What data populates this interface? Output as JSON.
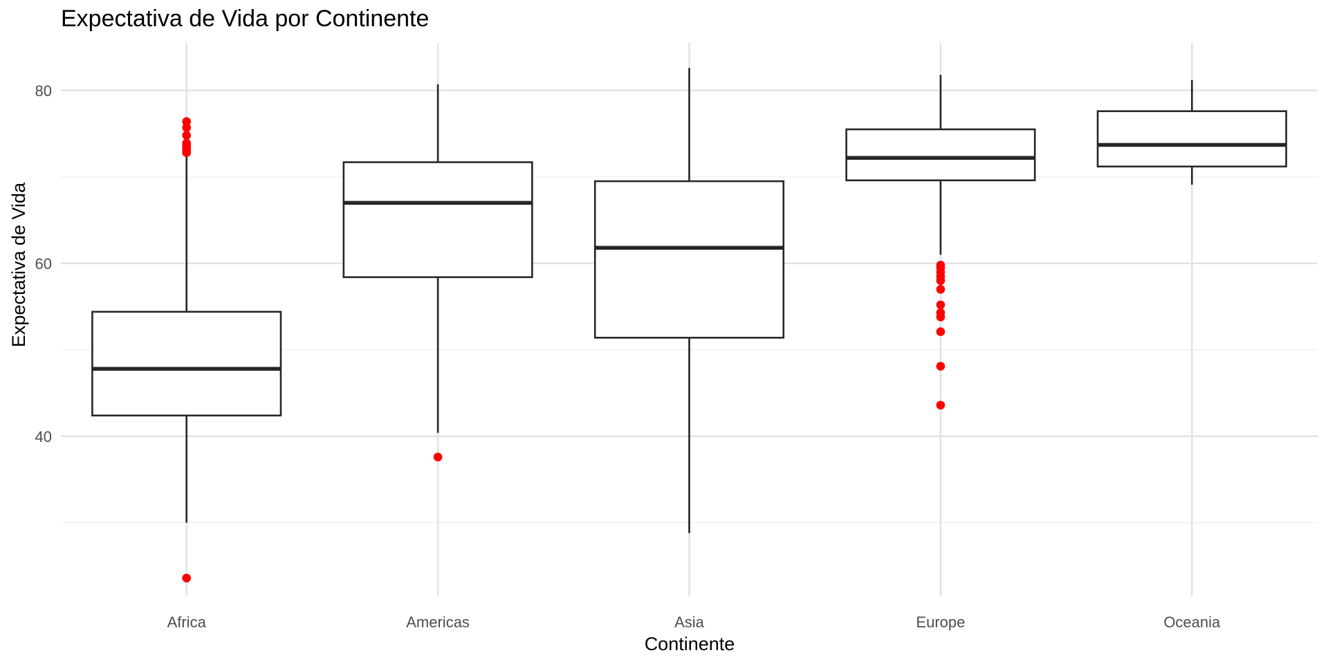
{
  "chart_data": {
    "type": "boxplot",
    "title": "Expectativa de Vida por Continente",
    "xlabel": "Continente",
    "ylabel": "Expectativa de Vida",
    "categories": [
      "Africa",
      "Americas",
      "Asia",
      "Europe",
      "Oceania"
    ],
    "ylim": [
      21.5,
      85.5
    ],
    "y_ticks": [
      40,
      60,
      80
    ],
    "y_minor_ticks": [
      30,
      50,
      70
    ],
    "grid": true,
    "colors": {
      "box_stroke": "#262626",
      "outlier": "#ff0000",
      "grid": "#e3e3e3"
    },
    "boxes": [
      {
        "category": "Africa",
        "whisker_low": 30.0,
        "q1": 42.4,
        "median": 47.8,
        "q3": 54.4,
        "whisker_high": 72.4,
        "outliers": [
          23.6,
          72.8,
          73.0,
          73.3,
          73.6,
          73.9,
          74.8,
          75.7,
          76.4
        ]
      },
      {
        "category": "Americas",
        "whisker_low": 40.4,
        "q1": 58.4,
        "median": 67.0,
        "q3": 71.7,
        "whisker_high": 80.7,
        "outliers": [
          37.6
        ]
      },
      {
        "category": "Asia",
        "whisker_low": 28.8,
        "q1": 51.4,
        "median": 61.8,
        "q3": 69.5,
        "whisker_high": 82.6,
        "outliers": []
      },
      {
        "category": "Europe",
        "whisker_low": 61.0,
        "q1": 69.6,
        "median": 72.2,
        "q3": 75.5,
        "whisker_high": 81.8,
        "outliers": [
          43.6,
          48.1,
          52.1,
          53.8,
          54.3,
          55.2,
          57.0,
          58.0,
          58.5,
          59.0,
          59.5,
          59.8
        ]
      },
      {
        "category": "Oceania",
        "whisker_low": 69.1,
        "q1": 71.2,
        "median": 73.7,
        "q3": 77.6,
        "whisker_high": 81.2,
        "outliers": []
      }
    ]
  }
}
